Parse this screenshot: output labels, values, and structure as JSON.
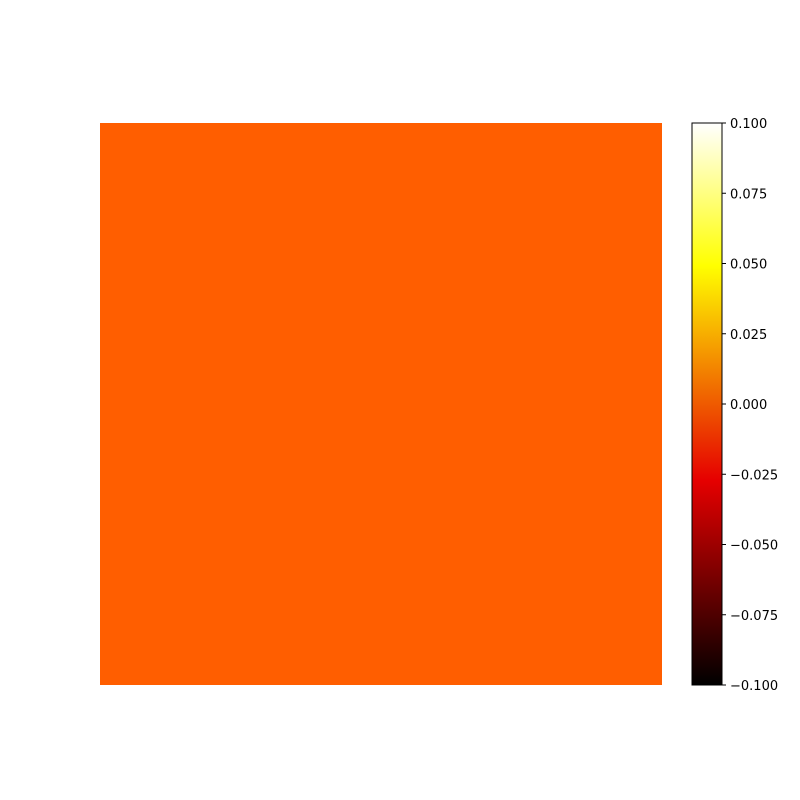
{
  "chart_data": {
    "type": "heatmap",
    "values": [
      [
        0.0
      ]
    ],
    "colormap": "hot",
    "colorbar": {
      "vmin": -0.1,
      "vmax": 0.1,
      "ticks": [
        0.1,
        0.075,
        0.05,
        0.025,
        0.0,
        -0.025,
        -0.05,
        -0.075,
        -0.1
      ],
      "tick_labels": [
        "0.100",
        "0.075",
        "0.050",
        "0.025",
        "0.000",
        "−0.025",
        "−0.050",
        "−0.075",
        "−0.100"
      ],
      "colors": [
        "#000000",
        "#ff0000",
        "#ffff00",
        "#ffffff"
      ]
    },
    "cell_color": "#ff5e00",
    "axes_visible": false,
    "grid": false
  }
}
